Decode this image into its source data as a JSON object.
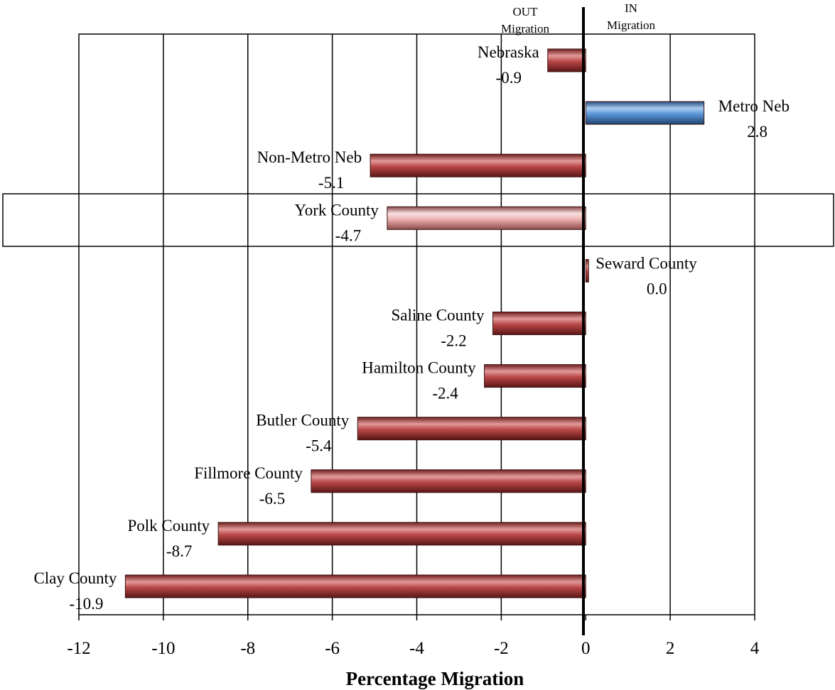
{
  "chart_data": {
    "type": "bar",
    "orientation": "horizontal",
    "categories": [
      "Nebraska",
      "Metro Neb",
      "Non-Metro Neb",
      "York County",
      "Seward County",
      "Saline County",
      "Hamilton County",
      "Butler County",
      "Fillmore County",
      "Polk County",
      "Clay County"
    ],
    "values": [
      -0.9,
      2.8,
      -5.1,
      -4.7,
      0.0,
      -2.2,
      -2.4,
      -5.4,
      -6.5,
      -8.7,
      -10.9
    ],
    "value_labels": [
      "-0.9",
      "2.8",
      "-5.1",
      "-4.7",
      "0.0",
      "-2.2",
      "-2.4",
      "-5.4",
      "-6.5",
      "-8.7",
      "-10.9"
    ],
    "bar_colors": [
      "#a83a3a",
      "#4a86cf",
      "#a83a3a",
      "#f0b4b4",
      "#a83a3a",
      "#a83a3a",
      "#a83a3a",
      "#a83a3a",
      "#a83a3a",
      "#a83a3a",
      "#a83a3a"
    ],
    "highlighted_category": "York County",
    "title": "",
    "xlabel": "Percentage Migration",
    "ylabel": "",
    "xlim": [
      -12,
      4
    ],
    "x_ticks": [
      -12,
      -10,
      -8,
      -6,
      -4,
      -2,
      0,
      2,
      4
    ],
    "x_tick_labels": [
      "-12",
      "-10",
      "-8",
      "-6",
      "-4",
      "-2",
      "0",
      "2",
      "4"
    ],
    "vertical_gridlines": true,
    "direction_labels": {
      "out": [
        "OUT",
        "Migration"
      ],
      "in": [
        "IN",
        "Migration"
      ]
    }
  }
}
